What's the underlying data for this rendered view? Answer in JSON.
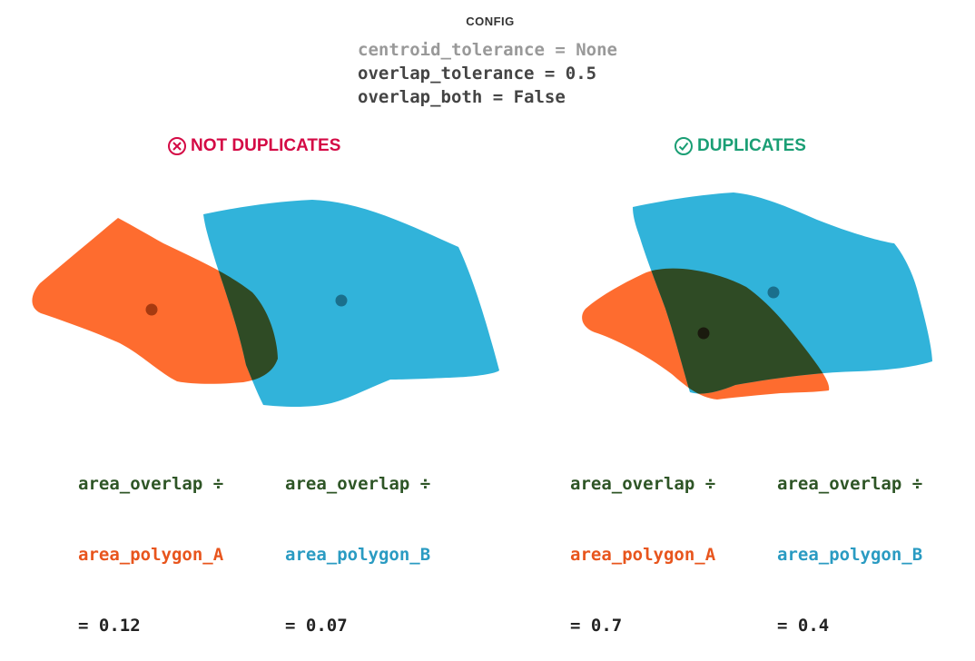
{
  "config": {
    "title": "CONFIG",
    "lines": [
      {
        "text": "centroid_tolerance = None",
        "color": "#999999"
      },
      {
        "text": "overlap_tolerance = 0.5",
        "color": "#444444"
      },
      {
        "text": "overlap_both = False",
        "color": "#444444"
      }
    ]
  },
  "colors": {
    "polygon_a": "#fe6c2f",
    "polygon_b": "#31b3da",
    "overlap": "#2f4b25",
    "not_duplicates": "#d40a45",
    "duplicates": "#1a9e74",
    "overlap_text": "#2e5526",
    "polygon_a_text": "#e8551d",
    "polygon_b_text": "#2a9bc2",
    "value_text": "#222222"
  },
  "panels": [
    {
      "verdict": {
        "label": "NOT DUPLICATES",
        "icon": "x-circle-icon"
      },
      "metrics": [
        {
          "numerator": "area_overlap ÷",
          "denominator": "area_polygon_A",
          "result": "= 0.12"
        },
        {
          "numerator": "area_overlap ÷",
          "denominator": "area_polygon_B",
          "result": "= 0.07"
        }
      ]
    },
    {
      "verdict": {
        "label": "DUPLICATES",
        "icon": "check-circle-icon"
      },
      "metrics": [
        {
          "numerator": "area_overlap ÷",
          "denominator": "area_polygon_A",
          "result": "= 0.7"
        },
        {
          "numerator": "area_overlap ÷",
          "denominator": "area_polygon_B",
          "result": "= 0.4"
        }
      ]
    }
  ]
}
